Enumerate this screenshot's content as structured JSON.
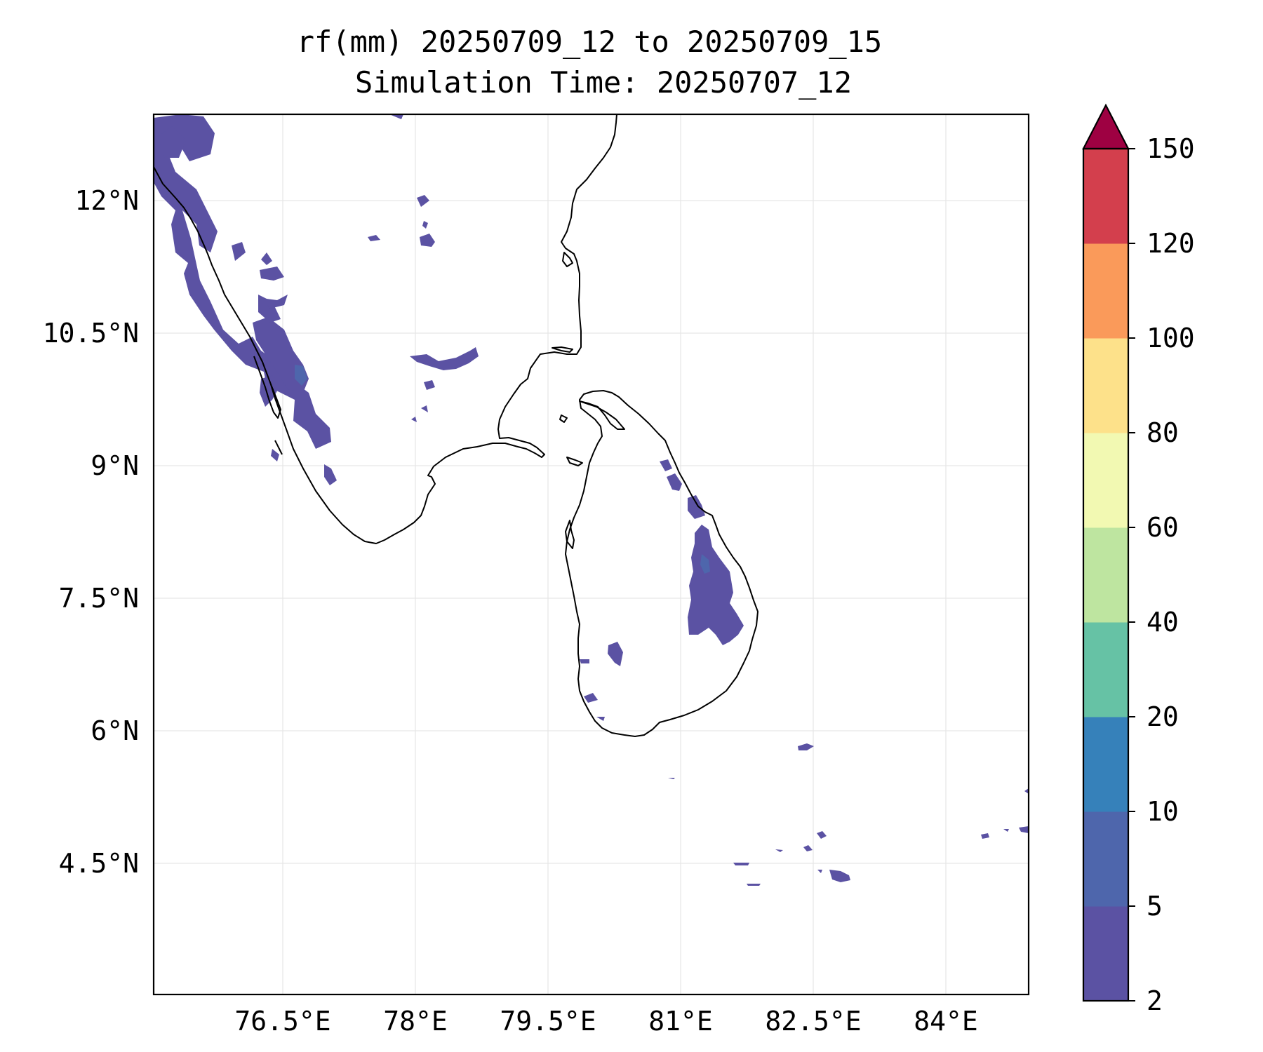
{
  "title": {
    "line1": "rf(mm) 20250709_12 to 20250709_15",
    "line2": "Simulation Time: 20250707_12"
  },
  "axes": {
    "lat_labels": [
      "12°N",
      "10.5°N",
      "9°N",
      "7.5°N",
      "6°N",
      "4.5°N"
    ],
    "lon_labels": [
      "76.5°E",
      "78°E",
      "79.5°E",
      "81°E",
      "82.5°E",
      "84°E"
    ],
    "lat_values": [
      12,
      10.5,
      9,
      7.5,
      6,
      4.5
    ],
    "lon_values": [
      76.5,
      78,
      79.5,
      81,
      82.5,
      84
    ],
    "lon_range": [
      75.05,
      84.95
    ],
    "lat_range": [
      3.0,
      12.95
    ],
    "grid": true
  },
  "colorbar": {
    "ticks": [
      "2",
      "5",
      "10",
      "20",
      "40",
      "60",
      "80",
      "100",
      "120",
      "150"
    ],
    "levels": [
      2,
      5,
      10,
      20,
      40,
      60,
      80,
      100,
      120,
      150
    ],
    "colors": [
      "#5b52a3",
      "#4e66ac",
      "#3681ba",
      "#66c2a5",
      "#bee5a0",
      "#f2f9b2",
      "#fde18a",
      "#fa9a5a",
      "#d33f4d"
    ],
    "extend_color": "#9e0142",
    "extend": "max"
  }
}
